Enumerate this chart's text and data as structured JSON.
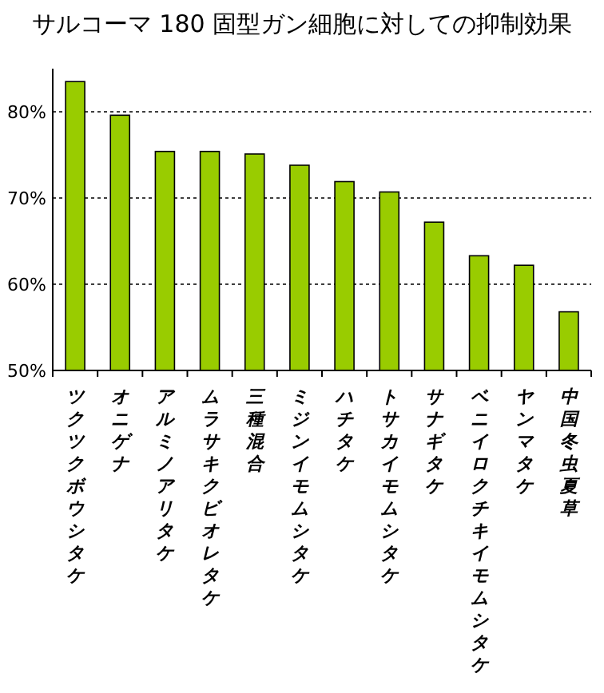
{
  "chart_data": {
    "type": "bar",
    "title": "サルコーマ 180 固型ガン細胞に対しての抑制効果",
    "categories": [
      "ツクツクボウシタケ",
      "オニゲナ",
      "アルミノアリタケ",
      "ムラサキクビオレタケ",
      "三種混合",
      "ミジンイモムシタケ",
      "ハチタケ",
      "トサカイモムシタケ",
      "サナギタケ",
      "ベニイロクチキイモムシタケ",
      "ヤンマタケ",
      "中国冬虫夏草"
    ],
    "values": [
      83.5,
      79.6,
      75.4,
      75.4,
      75.1,
      73.8,
      71.9,
      70.7,
      67.2,
      63.3,
      62.2,
      56.8
    ],
    "color": "#99cc00",
    "ylim": [
      50,
      85
    ],
    "yticks": [
      {
        "value": 50,
        "label": "50%"
      },
      {
        "value": 60,
        "label": "60%"
      },
      {
        "value": 70,
        "label": "70%"
      },
      {
        "value": 80,
        "label": "80%"
      }
    ],
    "grid": "y"
  }
}
